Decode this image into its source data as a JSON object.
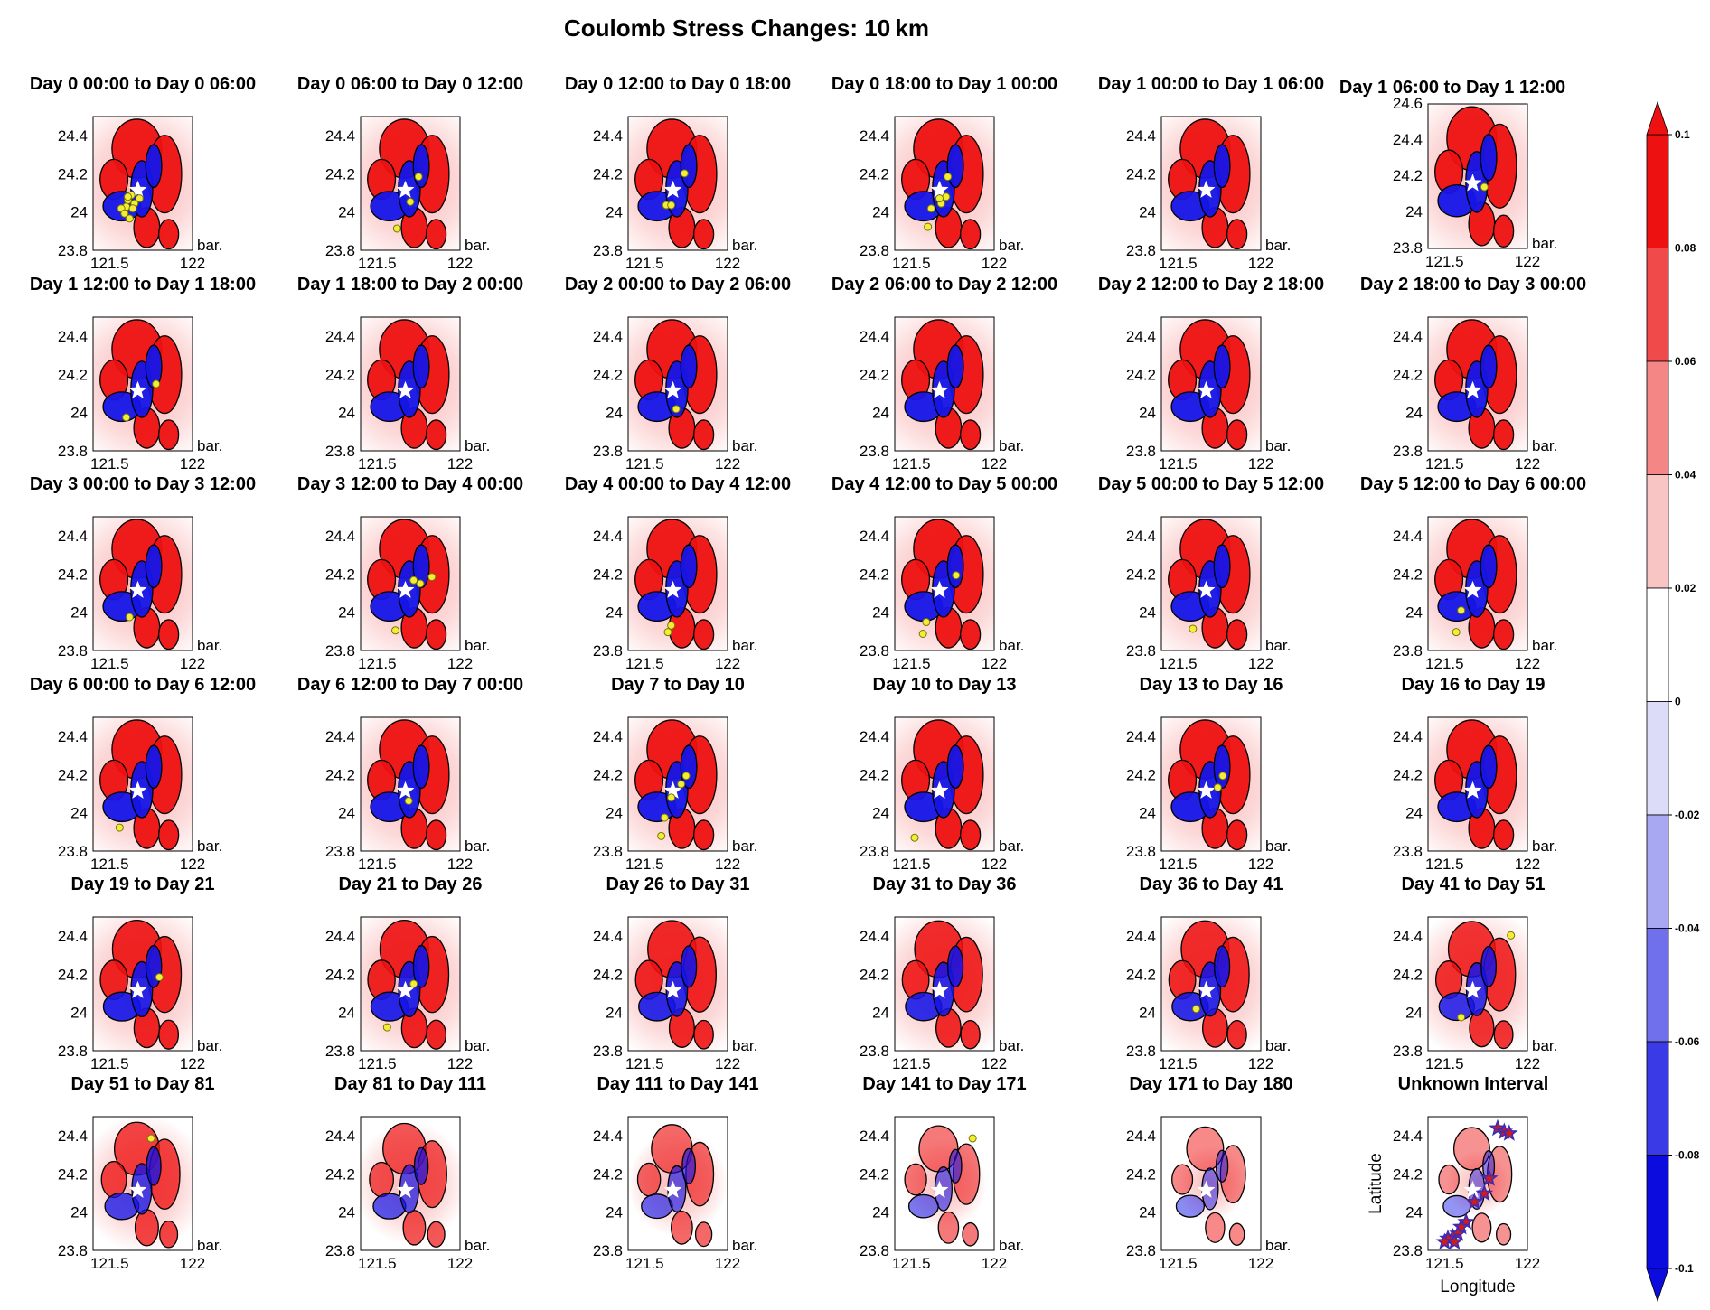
{
  "title": "Coulomb Stress Changes: 10 km",
  "colors": {
    "positive": "#ee1111",
    "negative": "#1515e8",
    "contour": "#000000",
    "epicenter": "#ffffff",
    "aftershock": "#f2ee38",
    "aftershock_edge": "#777700",
    "star_marker": "#d01b1b",
    "star_edge": "#3a2bb8"
  },
  "colorbar": {
    "min": -0.1,
    "max": 0.1,
    "ticks": [
      "0.1",
      "0.08",
      "0.06",
      "0.04",
      "0.02",
      "0",
      "-0.02",
      "-0.04",
      "-0.06",
      "-0.08",
      "-0.1"
    ],
    "levels": [
      {
        "from": 0.08,
        "to": 0.1,
        "color": "#ee1111"
      },
      {
        "from": 0.06,
        "to": 0.08,
        "color": "#f04a4a"
      },
      {
        "from": 0.04,
        "to": 0.06,
        "color": "#f48686"
      },
      {
        "from": 0.02,
        "to": 0.04,
        "color": "#f9c4c4"
      },
      {
        "from": 0.0,
        "to": 0.02,
        "color": "#ffffff"
      },
      {
        "from": -0.02,
        "to": 0.0,
        "color": "#dcdcf9"
      },
      {
        "from": -0.04,
        "to": -0.02,
        "color": "#a8a8f2"
      },
      {
        "from": -0.06,
        "to": -0.04,
        "color": "#7070ec"
      },
      {
        "from": -0.08,
        "to": -0.06,
        "color": "#3a3ae6"
      },
      {
        "from": -0.1,
        "to": -0.08,
        "color": "#0c0cdf"
      }
    ]
  },
  "axes": {
    "yticks": [
      "24.4",
      "24.2",
      "24",
      "23.8"
    ],
    "xticks": [
      "121.5",
      "122"
    ],
    "unit_label": "bar.",
    "special_yticks": [
      "24.6",
      "24.4",
      "24.2",
      "24",
      "23.8"
    ],
    "xlabel": "Longitude",
    "ylabel": "Latitude"
  },
  "chart_data": {
    "type": "heatmap",
    "title": "Coulomb Stress Changes: 10 km",
    "xlim": [
      121.4,
      122.0
    ],
    "ylim": [
      23.8,
      24.6
    ],
    "epicenter": [
      121.67,
      24.16
    ],
    "colorbar_range": [
      -0.1,
      0.1
    ],
    "panels": [
      {
        "title": "Day 0 00:00 to Day 0 06:00",
        "intensity": 1.0,
        "aftershocks": [
          [
            121.63,
            24.13
          ],
          [
            121.61,
            24.1
          ],
          [
            121.65,
            24.08
          ],
          [
            121.6,
            24.06
          ],
          [
            121.64,
            24.05
          ],
          [
            121.57,
            24.05
          ],
          [
            121.68,
            24.11
          ],
          [
            121.61,
            24.12
          ],
          [
            121.62,
            23.99
          ],
          [
            121.59,
            24.02
          ]
        ]
      },
      {
        "title": "Day 0 06:00 to Day 0 12:00",
        "intensity": 1.0,
        "aftershocks": [
          [
            121.75,
            24.24
          ],
          [
            121.7,
            24.09
          ],
          [
            121.62,
            23.93
          ]
        ]
      },
      {
        "title": "Day 0 12:00 to Day 0 18:00",
        "intensity": 1.0,
        "aftershocks": [
          [
            121.63,
            24.07
          ],
          [
            121.66,
            24.07
          ],
          [
            121.74,
            24.26
          ]
        ]
      },
      {
        "title": "Day 0 18:00 to Day 1 00:00",
        "intensity": 1.0,
        "aftershocks": [
          [
            121.72,
            24.24
          ],
          [
            121.71,
            24.12
          ],
          [
            121.68,
            24.08
          ],
          [
            121.62,
            24.05
          ],
          [
            121.67,
            24.11
          ],
          [
            121.6,
            23.94
          ]
        ]
      },
      {
        "title": "Day 1 00:00 to Day 1 06:00",
        "intensity": 1.0,
        "aftershocks": []
      },
      {
        "title": "Day 1 06:00 to Day 1 12:00",
        "intensity": 1.0,
        "aftershocks": [
          [
            121.74,
            24.14
          ]
        ]
      },
      {
        "title": "Day 1 12:00 to Day 1 18:00",
        "intensity": 1.0,
        "aftershocks": [
          [
            121.78,
            24.2
          ],
          [
            121.6,
            24.0
          ]
        ]
      },
      {
        "title": "Day 1 18:00 to Day 2 00:00",
        "intensity": 1.0,
        "aftershocks": []
      },
      {
        "title": "Day 2 00:00 to Day 2 06:00",
        "intensity": 1.0,
        "aftershocks": [
          [
            121.69,
            24.05
          ]
        ]
      },
      {
        "title": "Day 2 06:00 to Day 2 12:00",
        "intensity": 1.0,
        "aftershocks": []
      },
      {
        "title": "Day 2 12:00 to Day 2 18:00",
        "intensity": 1.0,
        "aftershocks": []
      },
      {
        "title": "Day 2 18:00 to Day 3 00:00",
        "intensity": 1.0,
        "aftershocks": []
      },
      {
        "title": "Day 3 00:00 to Day 3 12:00",
        "intensity": 1.0,
        "aftershocks": [
          [
            121.62,
            24.0
          ]
        ]
      },
      {
        "title": "Day 3 12:00 to Day 4 00:00",
        "intensity": 1.0,
        "aftershocks": [
          [
            121.83,
            24.24
          ],
          [
            121.76,
            24.2
          ],
          [
            121.72,
            24.22
          ],
          [
            121.61,
            23.92
          ]
        ]
      },
      {
        "title": "Day 4 00:00 to Day 4 12:00",
        "intensity": 1.0,
        "aftershocks": [
          [
            121.66,
            23.95
          ],
          [
            121.64,
            23.91
          ]
        ]
      },
      {
        "title": "Day 4 12:00 to Day 5 00:00",
        "intensity": 1.0,
        "aftershocks": [
          [
            121.77,
            24.25
          ],
          [
            121.59,
            23.97
          ],
          [
            121.57,
            23.9
          ]
        ]
      },
      {
        "title": "Day 5 00:00 to Day 5 12:00",
        "intensity": 1.0,
        "aftershocks": [
          [
            121.59,
            23.93
          ]
        ]
      },
      {
        "title": "Day 5 12:00 to Day 6 00:00",
        "intensity": 1.0,
        "aftershocks": [
          [
            121.6,
            24.04
          ],
          [
            121.57,
            23.91
          ]
        ]
      },
      {
        "title": "Day 6 00:00 to Day 6 12:00",
        "intensity": 1.0,
        "aftershocks": [
          [
            121.56,
            23.94
          ]
        ]
      },
      {
        "title": "Day 6 12:00 to Day 7 00:00",
        "intensity": 1.0,
        "aftershocks": [
          [
            121.69,
            24.1
          ]
        ]
      },
      {
        "title": "Day 7 to Day 10",
        "intensity": 1.0,
        "aftershocks": [
          [
            121.75,
            24.25
          ],
          [
            121.72,
            24.2
          ],
          [
            121.66,
            24.12
          ],
          [
            121.62,
            24.0
          ],
          [
            121.6,
            23.89
          ]
        ]
      },
      {
        "title": "Day 10 to Day 13",
        "intensity": 1.0,
        "aftershocks": [
          [
            121.52,
            23.88
          ]
        ]
      },
      {
        "title": "Day 13 to Day 16",
        "intensity": 1.0,
        "aftershocks": [
          [
            121.77,
            24.25
          ],
          [
            121.74,
            24.18
          ]
        ]
      },
      {
        "title": "Day 16 to Day 19",
        "intensity": 1.0,
        "aftershocks": []
      },
      {
        "title": "Day 19 to Day 21",
        "intensity": 0.95,
        "aftershocks": [
          [
            121.8,
            24.24
          ]
        ]
      },
      {
        "title": "Day 21 to Day 26",
        "intensity": 0.95,
        "aftershocks": [
          [
            121.72,
            24.2
          ],
          [
            121.56,
            23.94
          ]
        ]
      },
      {
        "title": "Day 26 to Day 31",
        "intensity": 0.92,
        "aftershocks": []
      },
      {
        "title": "Day 31 to Day 36",
        "intensity": 0.9,
        "aftershocks": []
      },
      {
        "title": "Day 36 to Day 41",
        "intensity": 0.9,
        "aftershocks": [
          [
            121.61,
            24.05
          ]
        ]
      },
      {
        "title": "Day 41 to Day 51",
        "intensity": 0.85,
        "aftershocks": [
          [
            121.9,
            24.49
          ],
          [
            121.6,
            24.0
          ]
        ]
      },
      {
        "title": "Day 51 to Day 81",
        "intensity": 0.75,
        "aftershocks": [
          [
            121.75,
            24.47
          ]
        ]
      },
      {
        "title": "Day 81 to Day 111",
        "intensity": 0.65,
        "aftershocks": []
      },
      {
        "title": "Day 111 to Day 141",
        "intensity": 0.55,
        "aftershocks": []
      },
      {
        "title": "Day 141 to Day 171",
        "intensity": 0.45,
        "aftershocks": [
          [
            121.87,
            24.47
          ]
        ]
      },
      {
        "title": "Day 171 to Day 180",
        "intensity": 0.35,
        "aftershocks": []
      },
      {
        "title": "Unknown Interval",
        "intensity": 0.3,
        "aftershocks": [],
        "stars": [
          [
            121.82,
            24.53
          ],
          [
            121.86,
            24.51
          ],
          [
            121.89,
            24.5
          ],
          [
            121.77,
            24.23
          ],
          [
            121.74,
            24.14
          ],
          [
            121.68,
            24.09
          ],
          [
            121.63,
            23.97
          ],
          [
            121.6,
            23.94
          ],
          [
            121.58,
            23.9
          ],
          [
            121.55,
            23.88
          ],
          [
            121.52,
            23.87
          ],
          [
            121.5,
            23.85
          ],
          [
            121.56,
            23.85
          ]
        ]
      }
    ]
  }
}
